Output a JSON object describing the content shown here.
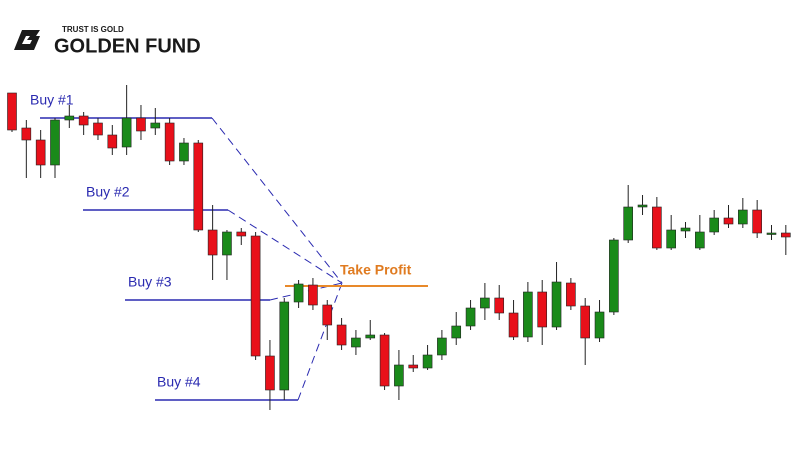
{
  "brand": {
    "tagline": "TRUST IS GOLD",
    "name": "GOLDEN FUND"
  },
  "chart_data": {
    "type": "candlestick",
    "up_color": "#1a8a1a",
    "down_color": "#e8101a",
    "ylim": [
      0,
      450
    ],
    "open": [
      357,
      322,
      310,
      285,
      330,
      334,
      327,
      315,
      303,
      332,
      322,
      327,
      289,
      307,
      220,
      195,
      218,
      214,
      94,
      60,
      148,
      165,
      145,
      125,
      103,
      112,
      115,
      64,
      85,
      82,
      95,
      112,
      124,
      142,
      152,
      137,
      113,
      158,
      123,
      167,
      144,
      112,
      138,
      210,
      243,
      243,
      202,
      219,
      202,
      218,
      232,
      226,
      240,
      217,
      217
    ],
    "high": [
      357,
      330,
      320,
      332,
      345,
      338,
      332,
      325,
      365,
      345,
      342,
      332,
      312,
      310,
      245,
      220,
      222,
      218,
      110,
      152,
      170,
      172,
      150,
      132,
      120,
      130,
      117,
      100,
      95,
      105,
      120,
      138,
      150,
      167,
      165,
      150,
      168,
      170,
      188,
      172,
      152,
      150,
      212,
      265,
      255,
      253,
      235,
      228,
      235,
      240,
      245,
      252,
      250,
      225,
      225
    ],
    "low": [
      318,
      272,
      272,
      272,
      322,
      315,
      310,
      295,
      295,
      310,
      315,
      285,
      285,
      218,
      170,
      170,
      205,
      90,
      40,
      50,
      142,
      140,
      110,
      100,
      95,
      110,
      60,
      50,
      78,
      80,
      90,
      105,
      120,
      130,
      130,
      110,
      108,
      105,
      120,
      140,
      85,
      108,
      135,
      207,
      235,
      200,
      200,
      212,
      200,
      215,
      222,
      222,
      212,
      210,
      195
    ],
    "close": [
      320,
      310,
      285,
      330,
      334,
      325,
      315,
      302,
      332,
      319,
      327,
      289,
      307,
      220,
      195,
      218,
      214,
      94,
      60,
      148,
      166,
      145,
      125,
      105,
      112,
      115,
      64,
      85,
      82,
      95,
      112,
      124,
      142,
      152,
      137,
      113,
      158,
      123,
      168,
      144,
      112,
      138,
      210,
      243,
      245,
      202,
      220,
      222,
      218,
      232,
      226,
      240,
      217,
      217,
      213
    ],
    "annotations": [
      {
        "label": "Buy #1",
        "value": 332
      },
      {
        "label": "Buy #2",
        "value": 240
      },
      {
        "label": "Buy #3",
        "value": 150
      },
      {
        "label": "Buy #4",
        "value": 50
      }
    ],
    "take_profit": {
      "label": "Take Profit",
      "value": 164
    }
  }
}
